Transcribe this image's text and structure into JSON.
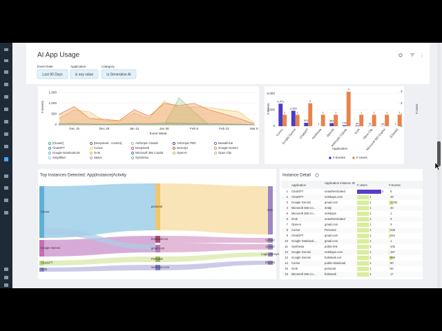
{
  "header": {
    "title": "AI App Usage"
  },
  "filters": [
    {
      "label": "Event Date",
      "value": "Last 90 Days"
    },
    {
      "label": "Application",
      "value": "is any value"
    },
    {
      "label": "Category",
      "value": "is Generative AI"
    }
  ],
  "area_chart": {
    "type": "area",
    "y_label": "# Events",
    "x_label": "Event Week",
    "categories": [
      null,
      "Dec 15",
      null,
      "Dec 29",
      null,
      "Jan 12",
      null,
      "Jan 26",
      null,
      "Feb 9",
      null,
      "Feb 23",
      null,
      "Mar 9"
    ],
    "ylim": [
      0,
      1800
    ],
    "yticks": [
      0,
      500,
      {
        "value": 1000,
        "label": "1,000"
      },
      {
        "value": 1500,
        "label": "1,500"
      }
    ],
    "series": [
      {
        "name": "[Clouds]",
        "color": "#3aa6a0",
        "values": [
          0,
          0,
          0,
          0,
          0,
          0,
          0,
          0,
          0,
          0,
          0,
          0,
          0,
          0
        ]
      },
      {
        "name": "[DeepSeek - custom]",
        "color": "#7b52ab",
        "values": [
          0,
          0,
          0,
          0,
          0,
          0,
          0,
          0,
          0,
          0,
          0,
          0,
          0,
          0
        ]
      },
      {
        "name": "Anthropic Claude",
        "color": "#8fd18a",
        "values": [
          0,
          0,
          0,
          0,
          0,
          0,
          0,
          0,
          1250,
          600,
          0,
          0,
          0,
          0
        ]
      },
      {
        "name": "Anthropic PBC",
        "color": "#5c3d8f",
        "values": [
          0,
          0,
          0,
          0,
          0,
          0,
          0,
          0,
          0,
          0,
          0,
          0,
          0,
          0
        ]
      },
      {
        "name": "Beautiful.ai",
        "color": "#4a7fc1",
        "values": [
          0,
          0,
          0,
          0,
          0,
          0,
          0,
          0,
          0,
          0,
          0,
          0,
          0,
          0
        ]
      },
      {
        "name": "ChatGPT",
        "color": "#2f9e9e",
        "values": [
          50,
          60,
          40,
          30,
          40,
          60,
          50,
          80,
          70,
          60,
          50,
          40,
          30,
          10
        ]
      },
      {
        "name": "Cursor",
        "color": "#f2c76b",
        "values": [
          300,
          700,
          600,
          200,
          150,
          550,
          300,
          1100,
          800,
          850,
          800,
          700,
          600,
          100
        ]
      },
      {
        "name": "DeepSeek",
        "color": "#d9487f",
        "values": [
          0,
          0,
          0,
          0,
          0,
          0,
          0,
          0,
          0,
          0,
          0,
          0,
          0,
          0
        ]
      },
      {
        "name": "Descript",
        "color": "#a06a3c",
        "values": [
          0,
          0,
          0,
          0,
          0,
          0,
          0,
          0,
          0,
          0,
          0,
          0,
          0,
          0
        ]
      },
      {
        "name": "Google Gemini",
        "color": "#e8834a",
        "values": [
          500,
          850,
          300,
          250,
          200,
          700,
          400,
          1000,
          900,
          1000,
          700,
          500,
          300,
          50
        ]
      },
      {
        "name": "Google NotebookLM",
        "color": "#6fa8dc",
        "values": [
          0,
          0,
          0,
          0,
          0,
          0,
          0,
          0,
          0,
          0,
          0,
          0,
          0,
          0
        ]
      },
      {
        "name": "Grok",
        "color": "#b5c94a",
        "values": [
          0,
          0,
          0,
          0,
          0,
          0,
          10,
          20,
          10,
          0,
          0,
          0,
          0,
          0
        ]
      },
      {
        "name": "Microsoft 365 Copilot",
        "color": "#3d6fb6",
        "values": [
          0,
          0,
          0,
          0,
          0,
          0,
          0,
          0,
          0,
          0,
          0,
          0,
          0,
          0
        ]
      },
      {
        "name": "OpenAI",
        "color": "#a3c94a",
        "values": [
          0,
          0,
          0,
          0,
          0,
          0,
          0,
          0,
          0,
          0,
          0,
          0,
          0,
          0
        ]
      },
      {
        "name": "Opus Clip",
        "color": "#b0b0b0",
        "values": [
          0,
          0,
          0,
          0,
          0,
          0,
          0,
          0,
          0,
          0,
          0,
          0,
          0,
          0
        ]
      },
      {
        "name": "Simplified",
        "color": "#9ec5e8",
        "values": [
          0,
          0,
          0,
          0,
          0,
          0,
          0,
          0,
          0,
          0,
          0,
          0,
          0,
          0
        ]
      },
      {
        "name": "Stylus",
        "color": "#c98fc9",
        "values": [
          0,
          0,
          0,
          0,
          0,
          0,
          0,
          0,
          0,
          0,
          0,
          0,
          0,
          0
        ]
      },
      {
        "name": "Synthesia",
        "color": "#7fb08a",
        "values": [
          0,
          0,
          0,
          0,
          0,
          0,
          0,
          0,
          0,
          0,
          0,
          0,
          0,
          0
        ]
      }
    ]
  },
  "bar_chart": {
    "type": "bar",
    "x_label": "Application",
    "y_label": "# Events",
    "y2_label": "# Users",
    "categories": [
      "Cursor",
      "Google Gemini",
      "ChatGPT",
      "Synthesia",
      "OpenAI",
      "Anthropic Claude",
      "Grok",
      "Opus Clip",
      "Microsoft 365 Copilot",
      "[Claude]"
    ],
    "ylim": [
      0,
      5000
    ],
    "yticks": [
      0,
      {
        "value": 2500,
        "label": "2,500"
      },
      {
        "value": 5000,
        "label": "5,000"
      }
    ],
    "y2lim": [
      0,
      3
    ],
    "y2ticks": [
      0,
      1,
      2,
      3
    ],
    "series": [
      {
        "name": "# Events",
        "color": "#4b3cc9",
        "values": [
          3471,
          2380,
          524,
          1,
          482,
          140,
          84,
          41,
          26,
          1
        ],
        "value_labels": [
          "3,471",
          "2,380",
          "524",
          "1",
          "482",
          "140",
          "84",
          "41",
          "26",
          "1"
        ]
      },
      {
        "name": "# Users",
        "color": "#e8834a",
        "axis": "y2",
        "values": [
          1,
          1,
          2,
          1,
          1,
          3,
          1,
          1,
          1,
          1
        ]
      }
    ]
  },
  "sankey": {
    "title": "Top Instances Detected: App|Instance|Activity",
    "nodes": [
      {
        "label": "Cursor"
      },
      {
        "label": "Google Gemini"
      },
      {
        "label": "ChatGPT"
      },
      {
        "label": "Grok"
      },
      {
        "label": "personal"
      },
      {
        "label": "bobstank.net"
      },
      {
        "label": "gmail.com"
      },
      {
        "label": "Personal"
      },
      {
        "label": "netskope.com"
      },
      {
        "label": "Edit"
      },
      {
        "label": "Upload"
      },
      {
        "label": "Upload"
      },
      {
        "label": "Login Attempt"
      },
      {
        "label": "Deposit"
      }
    ]
  },
  "table": {
    "title": "Instance Detail",
    "columns": [
      "Application",
      "Application Instance ID",
      "# Users",
      "# Events"
    ],
    "rows": [
      [
        1,
        "ChatGPT",
        "unauthenticated",
        2,
        5
      ],
      [
        2,
        "ChatGPT",
        "netskope.com",
        1,
        49
      ],
      [
        3,
        "Google Gemini",
        "gmail.com",
        1,
        {
          "value": 1032,
          "label": "1,032"
        }
      ],
      [
        4,
        "Microsoft 365 Co...",
        "3r3dji",
        1,
        20
      ],
      [
        5,
        "Microsoft 365 Co...",
        "netskope",
        1,
        1
      ],
      [
        6,
        "Grok",
        "unauthenticated",
        1,
        3
      ],
      [
        7,
        "OpenAI",
        "gmail.com",
        1,
        3
      ],
      [
        8,
        "Cursor",
        "Personal",
        1,
        326
      ],
      [
        9,
        "ChatGPT",
        "gmail.com",
        1,
        444
      ],
      [
        10,
        "Google Notebook...",
        "gmail.com",
        1,
        1
      ],
      [
        11,
        "Synthesia",
        "public-link",
        1,
        105
      ],
      [
        12,
        "Google Gemini",
        "netskope.com",
        1,
        167
      ],
      [
        13,
        "Google Gemini",
        "bobstank.net",
        1,
        959
      ],
      [
        14,
        "Cursor",
        "public-download",
        1,
        90
      ],
      [
        15,
        "Grok",
        "personal",
        1,
        82
      ],
      [
        16,
        "Microsoft 365 Co...",
        "bobstank",
        1,
        17
      ]
    ]
  }
}
